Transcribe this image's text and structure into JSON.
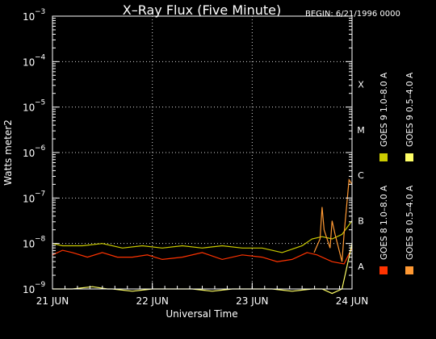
{
  "chart_data": {
    "type": "line",
    "title": "X–Ray Flux (Five Minute)",
    "begin_label": "BEGIN: 6/21/1996 0000",
    "xlabel": "Universal Time",
    "ylabel": "Watts meter2",
    "y_scale": "log",
    "ylim": [
      1e-09,
      0.001
    ],
    "xlim_days": [
      0,
      3
    ],
    "grid": true,
    "x_ticks": [
      {
        "pos": 0,
        "label": "21 JUN"
      },
      {
        "pos": 1,
        "label": "22 JUN"
      },
      {
        "pos": 2,
        "label": "23 JUN"
      },
      {
        "pos": 3,
        "label": "24 JUN"
      }
    ],
    "y_ticks": [
      {
        "base": "10",
        "exp": "−3",
        "value": -3
      },
      {
        "base": "10",
        "exp": "−4",
        "value": -4
      },
      {
        "base": "10",
        "exp": "−5",
        "value": -5
      },
      {
        "base": "10",
        "exp": "−6",
        "value": -6
      },
      {
        "base": "10",
        "exp": "−7",
        "value": -7
      },
      {
        "base": "10",
        "exp": "−8",
        "value": -8
      },
      {
        "base": "10",
        "exp": "−9",
        "value": -9
      }
    ],
    "flare_classes": [
      {
        "label": "X",
        "value": -4
      },
      {
        "label": "M",
        "value": -5
      },
      {
        "label": "C",
        "value": -6
      },
      {
        "label": "B",
        "value": -7
      },
      {
        "label": "A",
        "value": -8
      }
    ],
    "legend_position": "right",
    "series": [
      {
        "name": "GOES 8 1.0–8.0 A",
        "color": "#ff3300",
        "x_days": [
          0,
          0.1,
          0.2,
          0.35,
          0.5,
          0.65,
          0.8,
          0.95,
          1.1,
          1.3,
          1.5,
          1.7,
          1.9,
          2.1,
          2.25,
          2.4,
          2.55,
          2.65,
          2.8,
          2.92,
          3.0
        ],
        "log_flux": [
          -8.25,
          -8.15,
          -8.2,
          -8.3,
          -8.2,
          -8.3,
          -8.3,
          -8.25,
          -8.35,
          -8.3,
          -8.2,
          -8.35,
          -8.25,
          -8.3,
          -8.4,
          -8.35,
          -8.2,
          -8.25,
          -8.4,
          -8.45,
          -8.1
        ]
      },
      {
        "name": "GOES 9 1.0–8.0 A",
        "color": "#cccc00",
        "x_days": [
          0,
          0.1,
          0.3,
          0.5,
          0.7,
          0.9,
          1.1,
          1.3,
          1.5,
          1.7,
          1.9,
          2.1,
          2.3,
          2.5,
          2.6,
          2.7,
          2.8,
          2.9,
          3.0
        ],
        "log_flux": [
          -8.0,
          -8.05,
          -8.05,
          -8.0,
          -8.1,
          -8.05,
          -8.1,
          -8.05,
          -8.1,
          -8.05,
          -8.1,
          -8.1,
          -8.2,
          -8.05,
          -7.9,
          -7.85,
          -7.9,
          -7.8,
          -7.5
        ]
      },
      {
        "name": "GOES 8 0.5–4.0 A",
        "color": "#ff9933",
        "x_days": [
          2.62,
          2.68,
          2.7,
          2.72,
          2.78,
          2.8,
          2.83,
          2.9,
          2.92,
          2.97,
          3.0
        ],
        "log_flux": [
          -8.2,
          -7.9,
          -7.2,
          -7.7,
          -8.1,
          -7.5,
          -7.8,
          -8.4,
          -7.8,
          -6.6,
          -6.7
        ]
      },
      {
        "name": "GOES 9 0.5–4.0 A",
        "color": "#ffff66",
        "x_days": [
          0,
          0.2,
          0.4,
          0.55,
          0.6,
          0.8,
          1.0,
          1.2,
          1.4,
          1.6,
          1.8,
          2.0,
          2.2,
          2.4,
          2.6,
          2.7,
          2.8,
          2.9,
          3.0
        ],
        "log_flux": [
          -9.0,
          -9.0,
          -8.95,
          -9.0,
          -9.0,
          -9.05,
          -9.0,
          -9.0,
          -9.0,
          -9.05,
          -9.0,
          -9.0,
          -9.0,
          -9.05,
          -9.0,
          -9.0,
          -9.1,
          -9.0,
          -8.0
        ]
      }
    ]
  }
}
